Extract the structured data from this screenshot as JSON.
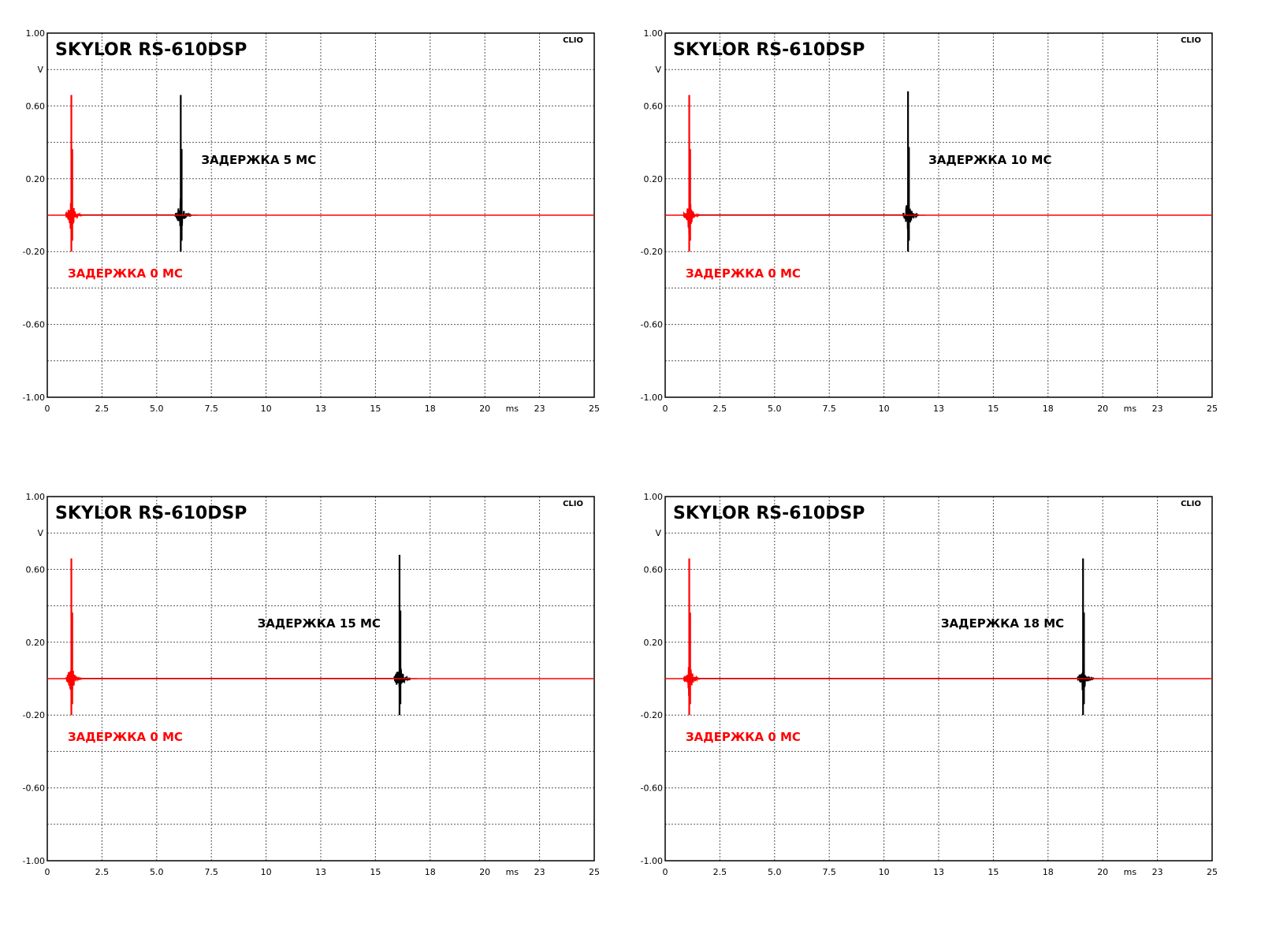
{
  "chart_data": [
    {
      "type": "line",
      "title": "SKYLOR RS-610DSP",
      "brand": "CLIO",
      "ylabel": "V",
      "xunit_label": "ms",
      "ylim": [
        -1.0,
        1.0
      ],
      "xlim": [
        0,
        25
      ],
      "y_ticks": [
        "1.00",
        "0.60",
        "0.20",
        "-0.20",
        "-0.60",
        "-1.00"
      ],
      "x_ticks": [
        "0",
        "2.5",
        "5.0",
        "7.5",
        "10",
        "13",
        "15",
        "18",
        "20",
        "23",
        "25"
      ],
      "grid": true,
      "series": [
        {
          "name": "ЗАДЕРЖКА 0 МС",
          "color": "#ff0000",
          "peak_time_ms": 1.1,
          "peak_max_v": 0.66,
          "peak_min_v": -0.2
        },
        {
          "name": "ЗАДЕРЖКА 5 МС",
          "color": "#000000",
          "peak_time_ms": 6.1,
          "peak_max_v": 0.66,
          "peak_min_v": -0.2
        }
      ]
    },
    {
      "type": "line",
      "title": "SKYLOR RS-610DSP",
      "brand": "CLIO",
      "ylabel": "V",
      "xunit_label": "ms",
      "ylim": [
        -1.0,
        1.0
      ],
      "xlim": [
        0,
        25
      ],
      "y_ticks": [
        "1.00",
        "0.60",
        "0.20",
        "-0.20",
        "-0.60",
        "-1.00"
      ],
      "x_ticks": [
        "0",
        "2.5",
        "5.0",
        "7.5",
        "10",
        "13",
        "15",
        "18",
        "20",
        "23",
        "25"
      ],
      "grid": true,
      "series": [
        {
          "name": "ЗАДЕРЖКА 0 МС",
          "color": "#ff0000",
          "peak_time_ms": 1.1,
          "peak_max_v": 0.66,
          "peak_min_v": -0.2
        },
        {
          "name": "ЗАДЕРЖКА 10 МС",
          "color": "#000000",
          "peak_time_ms": 11.1,
          "peak_max_v": 0.68,
          "peak_min_v": -0.2
        }
      ]
    },
    {
      "type": "line",
      "title": "SKYLOR RS-610DSP",
      "brand": "CLIO",
      "ylabel": "V",
      "xunit_label": "ms",
      "ylim": [
        -1.0,
        1.0
      ],
      "xlim": [
        0,
        25
      ],
      "y_ticks": [
        "1.00",
        "0.60",
        "0.20",
        "-0.20",
        "-0.60",
        "-1.00"
      ],
      "x_ticks": [
        "0",
        "2.5",
        "5.0",
        "7.5",
        "10",
        "13",
        "15",
        "18",
        "20",
        "23",
        "25"
      ],
      "grid": true,
      "series": [
        {
          "name": "ЗАДЕРЖКА 0 МС",
          "color": "#ff0000",
          "peak_time_ms": 1.1,
          "peak_max_v": 0.66,
          "peak_min_v": -0.2
        },
        {
          "name": "ЗАДЕРЖКА 15 МС",
          "color": "#000000",
          "peak_time_ms": 16.1,
          "peak_max_v": 0.68,
          "peak_min_v": -0.2
        }
      ]
    },
    {
      "type": "line",
      "title": "SKYLOR RS-610DSP",
      "brand": "CLIO",
      "ylabel": "V",
      "xunit_label": "ms",
      "ylim": [
        -1.0,
        1.0
      ],
      "xlim": [
        0,
        25
      ],
      "y_ticks": [
        "1.00",
        "0.60",
        "0.20",
        "-0.20",
        "-0.60",
        "-1.00"
      ],
      "x_ticks": [
        "0",
        "2.5",
        "5.0",
        "7.5",
        "10",
        "13",
        "15",
        "18",
        "20",
        "23",
        "25"
      ],
      "grid": true,
      "series": [
        {
          "name": "ЗАДЕРЖКА 0 МС",
          "color": "#ff0000",
          "peak_time_ms": 1.1,
          "peak_max_v": 0.66,
          "peak_min_v": -0.2
        },
        {
          "name": "ЗАДЕРЖКА 18 МС",
          "color": "#000000",
          "peak_time_ms": 19.1,
          "peak_max_v": 0.66,
          "peak_min_v": -0.2
        }
      ]
    }
  ]
}
